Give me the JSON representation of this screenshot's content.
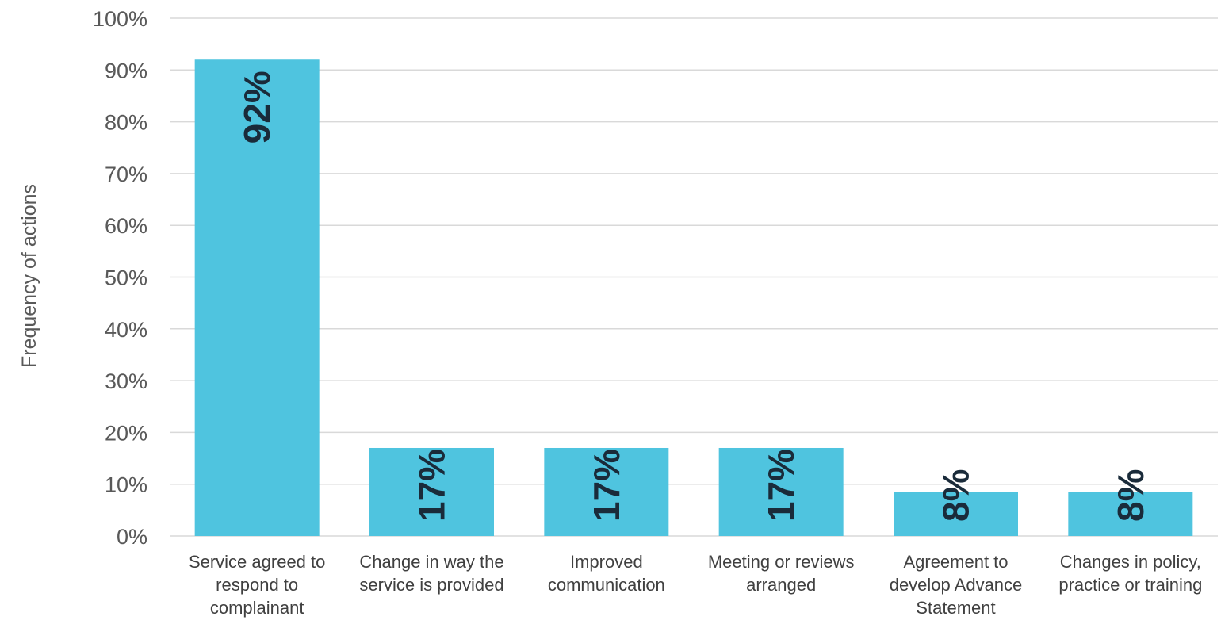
{
  "chart_data": {
    "type": "bar",
    "categories": [
      [
        "Service agreed to",
        "respond to",
        "complainant"
      ],
      [
        "Change in way the",
        "service is provided"
      ],
      [
        "Improved",
        "communication"
      ],
      [
        "Meeting or reviews",
        "arranged"
      ],
      [
        "Agreement to",
        "develop Advance",
        "Statement"
      ],
      [
        "Changes in policy,",
        "practice or training"
      ]
    ],
    "values": [
      92,
      17,
      17,
      17,
      8.5,
      8.5
    ],
    "data_labels": [
      "92%",
      "17%",
      "17%",
      "17%",
      "8%",
      "8%"
    ],
    "title": "",
    "xlabel": "",
    "ylabel": "Frequency of actions",
    "ylim": [
      0,
      100
    ],
    "yticks": [
      0,
      10,
      20,
      30,
      40,
      50,
      60,
      70,
      80,
      90,
      100
    ],
    "ytick_labels": [
      "0%",
      "10%",
      "20%",
      "30%",
      "40%",
      "50%",
      "60%",
      "70%",
      "80%",
      "90%",
      "100%"
    ],
    "grid": true,
    "bar_color": "#4fc4df",
    "grid_color": "#d9d9d9",
    "legend": "none"
  }
}
